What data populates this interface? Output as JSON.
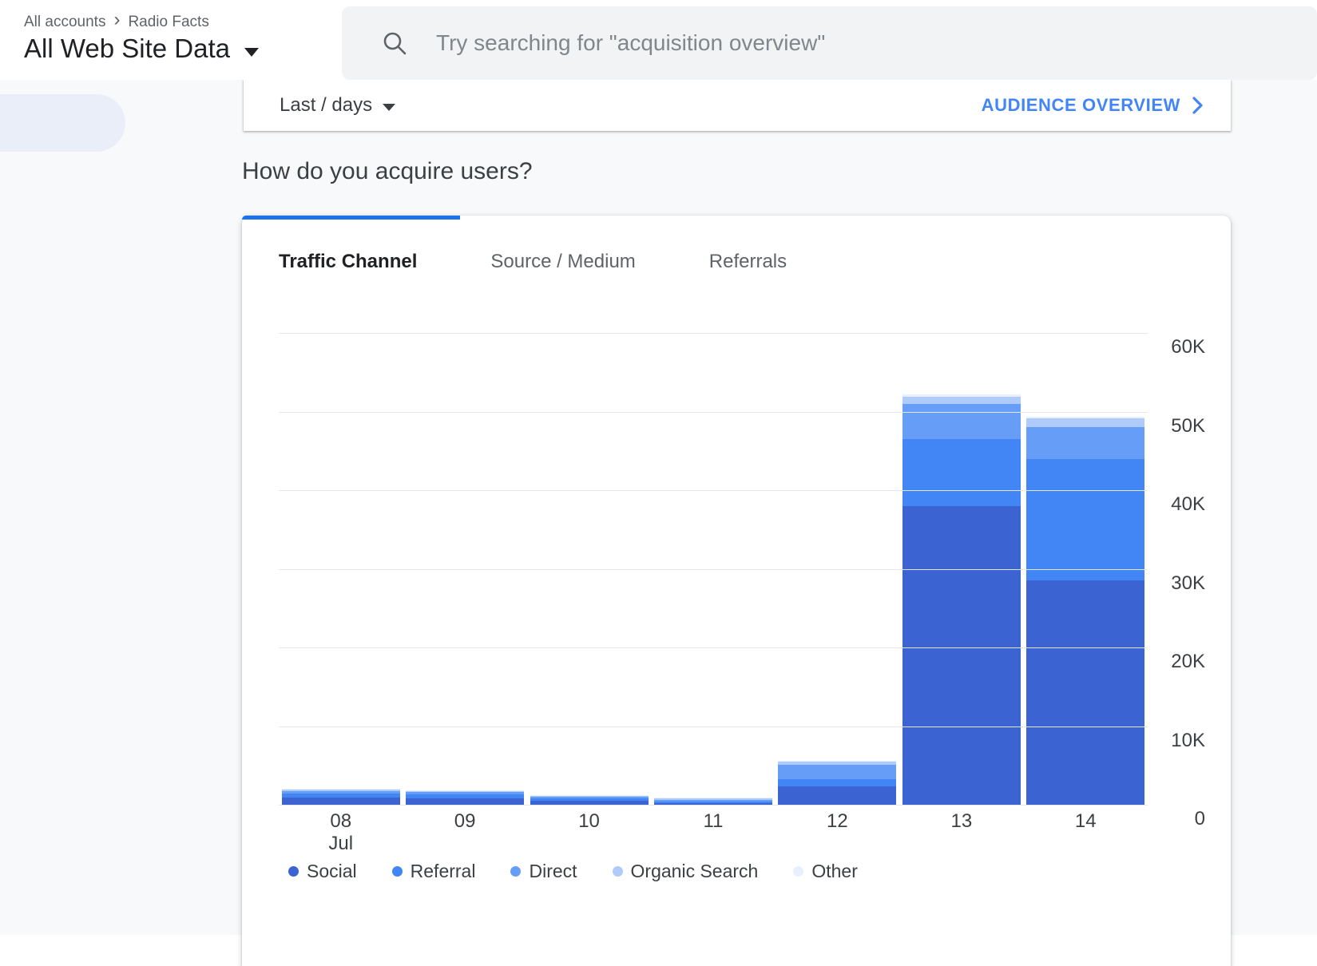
{
  "header": {
    "breadcrumb": {
      "root": "All accounts",
      "current": "Radio Facts"
    },
    "property_selector": "All Web Site Data",
    "search_placeholder": "Try searching for \"acquisition overview\""
  },
  "date_card": {
    "date_range_label": "Last / days",
    "audience_overview_label": "AUDIENCE OVERVIEW"
  },
  "section_title": "How do you acquire users?",
  "tabs": [
    {
      "label": "Traffic Channel",
      "active": true
    },
    {
      "label": "Source / Medium",
      "active": false
    },
    {
      "label": "Referrals",
      "active": false
    }
  ],
  "colors": {
    "accent_blue": "#1a73e8",
    "link_blue": "#4285f4",
    "background_gray": "#f8f9fa"
  },
  "chart_data": {
    "type": "bar",
    "stacked": true,
    "title": "",
    "xlabel": "",
    "ylabel": "",
    "categories": [
      "08",
      "09",
      "10",
      "11",
      "12",
      "13",
      "14"
    ],
    "category_sublabels": [
      "Jul",
      "",
      "",
      "",
      "",
      "",
      ""
    ],
    "ylim": [
      0,
      60000
    ],
    "ymax": 60000,
    "y_ticks": [
      "60K",
      "50K",
      "40K",
      "30K",
      "20K",
      "10K",
      "0"
    ],
    "grid": true,
    "legend_position": "bottom",
    "series": [
      {
        "name": "Social",
        "color": "#3b63d2",
        "values": [
          900,
          800,
          500,
          200,
          2300,
          38000,
          28500
        ]
      },
      {
        "name": "Referral",
        "color": "#4285f4",
        "values": [
          500,
          500,
          300,
          200,
          1000,
          8500,
          15500
        ]
      },
      {
        "name": "Direct",
        "color": "#669df6",
        "values": [
          300,
          300,
          200,
          200,
          1800,
          4500,
          4000
        ]
      },
      {
        "name": "Organic Search",
        "color": "#aecbfa",
        "values": [
          200,
          150,
          150,
          250,
          400,
          900,
          1100
        ]
      },
      {
        "name": "Other",
        "color": "#e8f0fe",
        "values": [
          100,
          50,
          50,
          50,
          100,
          300,
          200
        ]
      }
    ]
  }
}
